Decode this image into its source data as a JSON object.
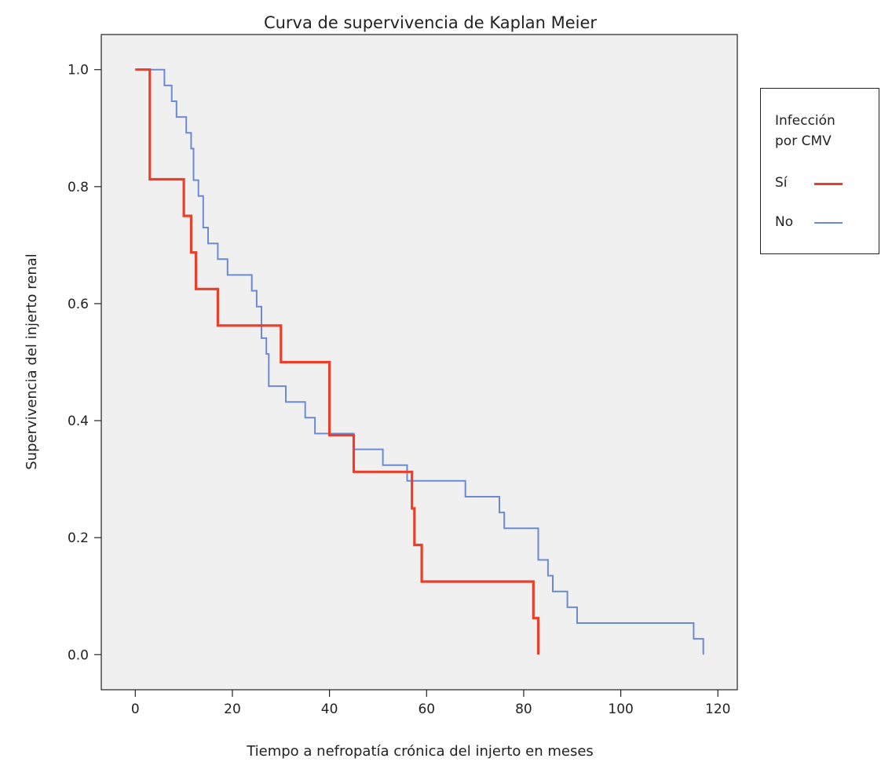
{
  "chart_data": {
    "type": "line",
    "title": "Curva de supervivencia de Kaplan Meier",
    "xlabel": "Tiempo a nefropatía crónica del injerto en meses",
    "ylabel": "Supervivencia del injerto renal",
    "xlim": [
      -7,
      124
    ],
    "ylim": [
      -0.06,
      1.06
    ],
    "x_ticks": [
      0,
      20,
      40,
      60,
      80,
      100,
      120
    ],
    "y_ticks": [
      0.0,
      0.2,
      0.4,
      0.6,
      0.8,
      1.0
    ],
    "y_tick_labels": [
      "0.0",
      "0.2",
      "0.4",
      "0.6",
      "0.8",
      "1.0"
    ],
    "grid": false,
    "legend": {
      "title": "Infección\npor CMV",
      "position": "right"
    },
    "series": [
      {
        "name": "Sí",
        "color": "#e8402a",
        "step": true,
        "points": [
          [
            0,
            1.0
          ],
          [
            3,
            1.0
          ],
          [
            3,
            0.8125
          ],
          [
            10,
            0.8125
          ],
          [
            10,
            0.75
          ],
          [
            11.5,
            0.75
          ],
          [
            11.5,
            0.6875
          ],
          [
            12.5,
            0.6875
          ],
          [
            12.5,
            0.625
          ],
          [
            17,
            0.625
          ],
          [
            17,
            0.5625
          ],
          [
            30,
            0.5625
          ],
          [
            30,
            0.5
          ],
          [
            40,
            0.5
          ],
          [
            40,
            0.375
          ],
          [
            45,
            0.375
          ],
          [
            45,
            0.3125
          ],
          [
            57,
            0.3125
          ],
          [
            57,
            0.25
          ],
          [
            57.5,
            0.25
          ],
          [
            57.5,
            0.1875
          ],
          [
            59,
            0.1875
          ],
          [
            59,
            0.125
          ],
          [
            82,
            0.125
          ],
          [
            82,
            0.0625
          ],
          [
            83,
            0.0625
          ],
          [
            83,
            0.0
          ]
        ]
      },
      {
        "name": "No",
        "color": "#6c8ad2",
        "step": true,
        "points": [
          [
            0,
            1.0
          ],
          [
            6,
            1.0
          ],
          [
            6,
            0.973
          ],
          [
            7.5,
            0.973
          ],
          [
            7.5,
            0.946
          ],
          [
            8.5,
            0.946
          ],
          [
            8.5,
            0.919
          ],
          [
            10.5,
            0.919
          ],
          [
            10.5,
            0.892
          ],
          [
            11.5,
            0.892
          ],
          [
            11.5,
            0.865
          ],
          [
            12,
            0.865
          ],
          [
            12,
            0.811
          ],
          [
            13,
            0.811
          ],
          [
            13,
            0.784
          ],
          [
            14,
            0.784
          ],
          [
            14,
            0.73
          ],
          [
            15,
            0.73
          ],
          [
            15,
            0.703
          ],
          [
            17,
            0.703
          ],
          [
            17,
            0.676
          ],
          [
            19,
            0.676
          ],
          [
            19,
            0.649
          ],
          [
            24,
            0.649
          ],
          [
            24,
            0.622
          ],
          [
            25,
            0.622
          ],
          [
            25,
            0.595
          ],
          [
            26,
            0.595
          ],
          [
            26,
            0.541
          ],
          [
            27,
            0.541
          ],
          [
            27,
            0.514
          ],
          [
            27.5,
            0.514
          ],
          [
            27.5,
            0.459
          ],
          [
            31,
            0.459
          ],
          [
            31,
            0.432
          ],
          [
            35,
            0.432
          ],
          [
            35,
            0.405
          ],
          [
            37,
            0.405
          ],
          [
            37,
            0.378
          ],
          [
            45,
            0.378
          ],
          [
            45,
            0.351
          ],
          [
            51,
            0.351
          ],
          [
            51,
            0.324
          ],
          [
            56,
            0.324
          ],
          [
            56,
            0.297
          ],
          [
            68,
            0.297
          ],
          [
            68,
            0.27
          ],
          [
            75,
            0.27
          ],
          [
            75,
            0.243
          ],
          [
            76,
            0.243
          ],
          [
            76,
            0.216
          ],
          [
            83,
            0.216
          ],
          [
            83,
            0.162
          ],
          [
            85,
            0.162
          ],
          [
            85,
            0.135
          ],
          [
            86,
            0.135
          ],
          [
            86,
            0.108
          ],
          [
            89,
            0.108
          ],
          [
            89,
            0.081
          ],
          [
            91,
            0.081
          ],
          [
            91,
            0.054
          ],
          [
            115,
            0.054
          ],
          [
            115,
            0.027
          ],
          [
            117,
            0.027
          ],
          [
            117,
            0.0
          ]
        ]
      }
    ]
  }
}
